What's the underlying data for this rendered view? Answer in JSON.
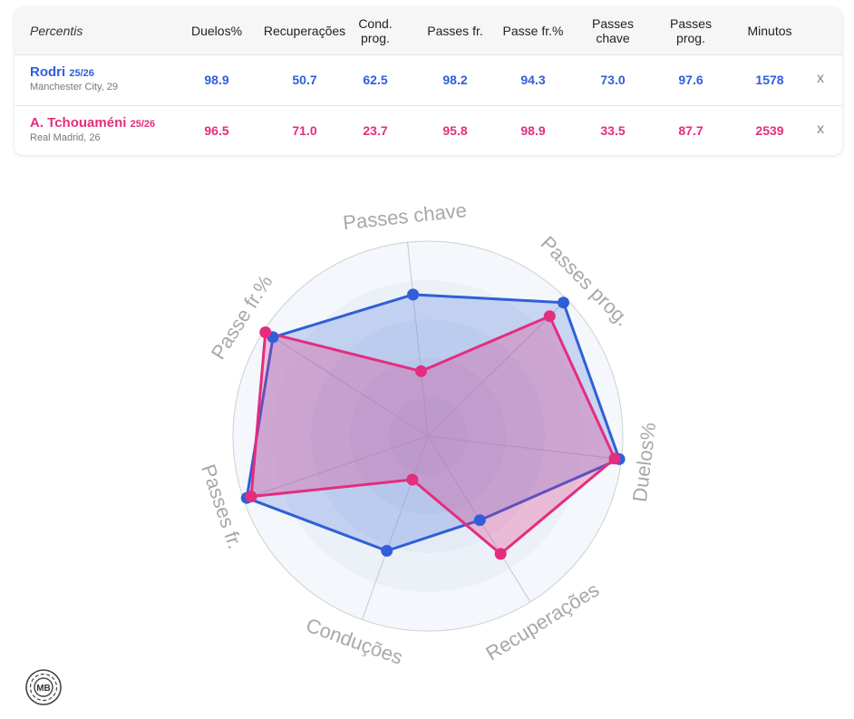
{
  "table": {
    "header_label": "Percentis",
    "columns": [
      "Duelos%",
      "Recuperações",
      "Cond.\nprog.",
      "Passes fr.",
      "Passe fr.%",
      "Passes\nchave",
      "Passes\nprog.",
      "Minutos"
    ],
    "close_label": "x",
    "players": [
      {
        "name": "Rodri",
        "season": "25/26",
        "team": "Manchester City, 29",
        "color": "#2f5fd8",
        "values": [
          "98.9",
          "50.7",
          "62.5",
          "98.2",
          "94.3",
          "73.0",
          "97.6",
          "1578"
        ]
      },
      {
        "name": "A. Tchouaméni",
        "season": "25/26",
        "team": "Real Madrid, 26",
        "color": "#e42d7e",
        "values": [
          "96.5",
          "71.0",
          "23.7",
          "95.8",
          "98.9",
          "33.5",
          "87.7",
          "2539"
        ]
      }
    ]
  },
  "chart_data": {
    "type": "radar",
    "axes": [
      "Passes chave",
      "Passes prog.",
      "Duelos%",
      "Recuperações",
      "Conduções",
      "Passes fr.",
      "Passe fr.%"
    ],
    "range": [
      0,
      100
    ],
    "series": [
      {
        "name": "Rodri",
        "color": "#2f5fd8",
        "values": [
          73.0,
          97.6,
          98.9,
          50.7,
          62.5,
          98.2,
          94.3
        ]
      },
      {
        "name": "A. Tchouaméni",
        "color": "#e42d7e",
        "values": [
          33.5,
          87.7,
          96.5,
          71.0,
          23.7,
          95.8,
          98.9
        ]
      }
    ]
  },
  "logo": {
    "text": "MB"
  }
}
